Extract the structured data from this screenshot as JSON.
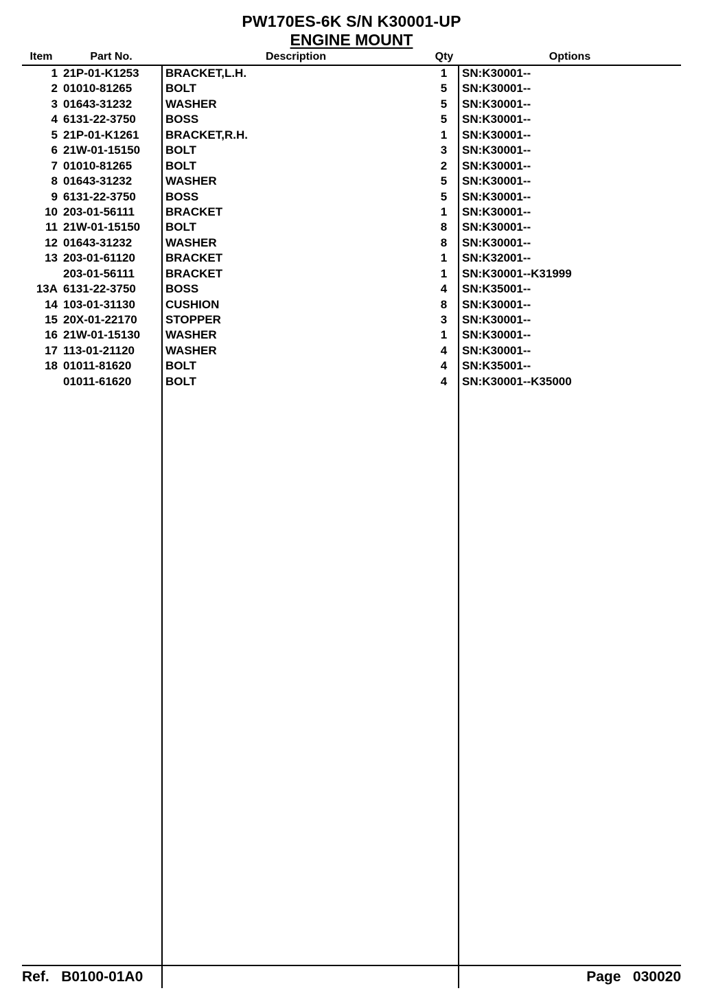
{
  "header": {
    "line1": "PW170ES-6K S/N K30001-UP",
    "line2": "ENGINE MOUNT"
  },
  "columns": {
    "item": "Item",
    "part": "Part No.",
    "desc": "Description",
    "qty": "Qty",
    "opt": "Options"
  },
  "rows": [
    {
      "item": "1",
      "part": "21P-01-K1253",
      "desc": "BRACKET,L.H.",
      "qty": "1",
      "opt": "SN:K30001--"
    },
    {
      "item": "2",
      "part": "01010-81265",
      "desc": "BOLT",
      "qty": "5",
      "opt": "SN:K30001--"
    },
    {
      "item": "3",
      "part": "01643-31232",
      "desc": "WASHER",
      "qty": "5",
      "opt": "SN:K30001--"
    },
    {
      "item": "4",
      "part": "6131-22-3750",
      "desc": "BOSS",
      "qty": "5",
      "opt": "SN:K30001--"
    },
    {
      "item": "5",
      "part": "21P-01-K1261",
      "desc": "BRACKET,R.H.",
      "qty": "1",
      "opt": "SN:K30001--"
    },
    {
      "item": "6",
      "part": "21W-01-15150",
      "desc": "BOLT",
      "qty": "3",
      "opt": "SN:K30001--"
    },
    {
      "item": "7",
      "part": "01010-81265",
      "desc": "BOLT",
      "qty": "2",
      "opt": "SN:K30001--"
    },
    {
      "item": "8",
      "part": "01643-31232",
      "desc": "WASHER",
      "qty": "5",
      "opt": "SN:K30001--"
    },
    {
      "item": "9",
      "part": "6131-22-3750",
      "desc": "BOSS",
      "qty": "5",
      "opt": "SN:K30001--"
    },
    {
      "item": "10",
      "part": "203-01-56111",
      "desc": "BRACKET",
      "qty": "1",
      "opt": "SN:K30001--"
    },
    {
      "item": "11",
      "part": "21W-01-15150",
      "desc": "BOLT",
      "qty": "8",
      "opt": "SN:K30001--"
    },
    {
      "item": "12",
      "part": "01643-31232",
      "desc": "WASHER",
      "qty": "8",
      "opt": "SN:K30001--"
    },
    {
      "item": "13",
      "part": "203-01-61120",
      "desc": "BRACKET",
      "qty": "1",
      "opt": "SN:K32001--"
    },
    {
      "item": "",
      "part": "203-01-56111",
      "desc": "BRACKET",
      "qty": "1",
      "opt": "SN:K30001--K31999"
    },
    {
      "item": "13A",
      "part": "6131-22-3750",
      "desc": "BOSS",
      "qty": "4",
      "opt": "SN:K35001--"
    },
    {
      "item": "14",
      "part": "103-01-31130",
      "desc": "CUSHION",
      "qty": "8",
      "opt": "SN:K30001--"
    },
    {
      "item": "15",
      "part": "20X-01-22170",
      "desc": "STOPPER",
      "qty": "3",
      "opt": "SN:K30001--"
    },
    {
      "item": "16",
      "part": "21W-01-15130",
      "desc": "WASHER",
      "qty": "1",
      "opt": "SN:K30001--"
    },
    {
      "item": "17",
      "part": "113-01-21120",
      "desc": "WASHER",
      "qty": "4",
      "opt": "SN:K30001--"
    },
    {
      "item": "18",
      "part": "01011-81620",
      "desc": "BOLT",
      "qty": "4",
      "opt": "SN:K35001--"
    },
    {
      "item": "",
      "part": "01011-61620",
      "desc": "BOLT",
      "qty": "4",
      "opt": "SN:K30001--K35000"
    }
  ],
  "footer": {
    "ref_label": "Ref.",
    "ref_value": "B0100-01A0",
    "page_label": "Page",
    "page_value": "030020"
  },
  "style": {
    "background_color": "#ffffff",
    "text_color": "#000000",
    "border_color": "#000000",
    "font_family": "Arial, Helvetica, sans-serif",
    "title_fontsize": 23,
    "header_fontsize": 16,
    "cell_fontsize": 17,
    "footer_fontsize": 21
  }
}
